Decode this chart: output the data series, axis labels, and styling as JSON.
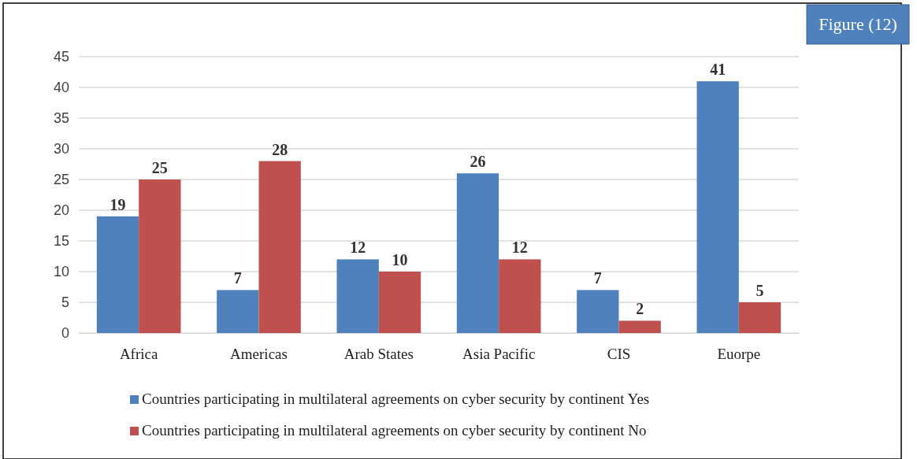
{
  "chart_data": {
    "type": "bar",
    "categories": [
      "Africa",
      "Americas",
      "Arab States",
      "Asia Pacific",
      "CIS",
      "Euorpe"
    ],
    "series": [
      {
        "name": "Countries participating in multilateral agreements on cyber security by continent Yes",
        "color": "#4f81bd",
        "values": [
          19,
          7,
          12,
          26,
          7,
          41
        ]
      },
      {
        "name": "Countries participating in multilateral agreements on cyber security by continent No",
        "color": "#c0504d",
        "values": [
          25,
          28,
          10,
          12,
          2,
          5
        ]
      }
    ],
    "ylim": [
      0,
      45
    ],
    "yticks": [
      0,
      5,
      10,
      15,
      20,
      25,
      30,
      35,
      40,
      45
    ],
    "grid": "y",
    "legend": "bottom",
    "data_labels": true,
    "annotations": [
      "Figure (12)"
    ]
  }
}
